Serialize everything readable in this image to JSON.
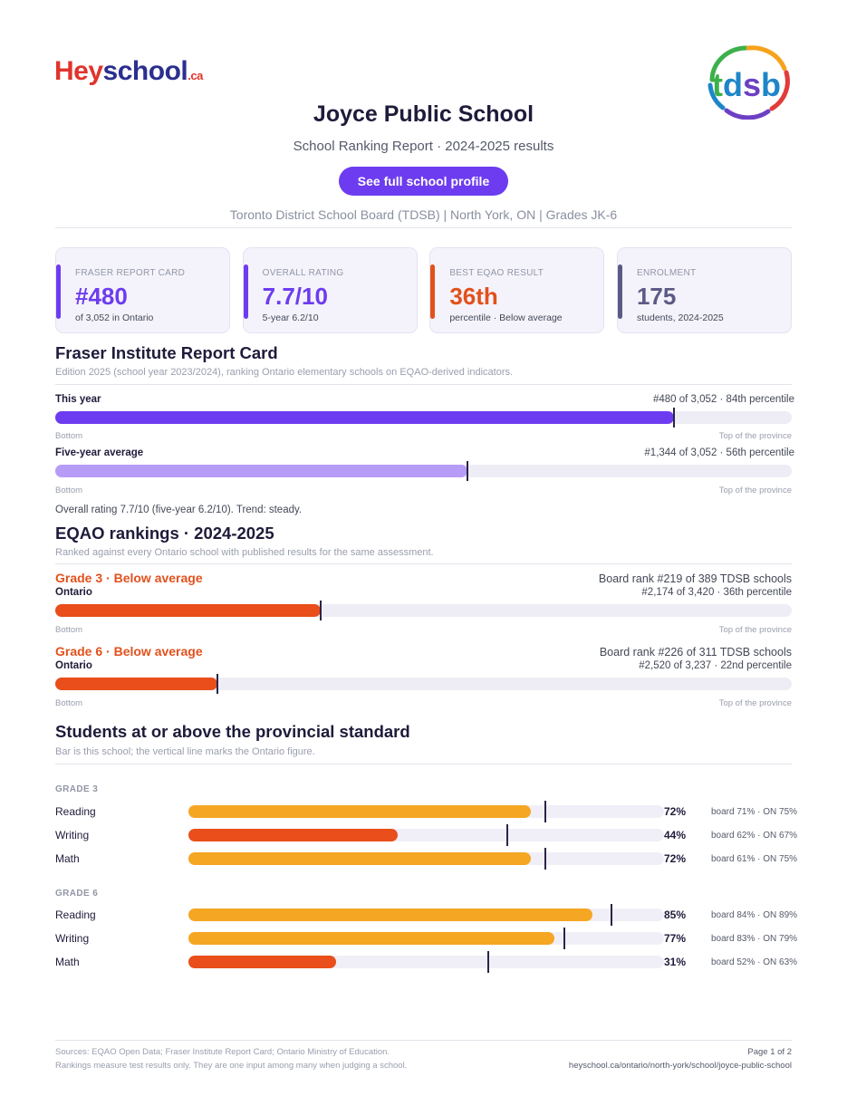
{
  "logos": {
    "heyschool": {
      "part1": "Hey",
      "part2": "school",
      "suffix": ".ca"
    },
    "board": "tdsb"
  },
  "header": {
    "title": "Joyce Public School",
    "subtitle": "School Ranking Report  ·  2024-2025 results",
    "cta_label": "See full school profile",
    "meta": "Toronto District School Board (TDSB)  |  North York, ON  |  Grades JK-6"
  },
  "cards": [
    {
      "label": "FRASER REPORT CARD",
      "value": "#480",
      "sub": "of 3,052 in Ontario",
      "color": "#6d3cf0"
    },
    {
      "label": "OVERALL RATING",
      "value": "7.7/10",
      "sub": "5-year 6.2/10",
      "color": "#6d3cf0"
    },
    {
      "label": "BEST EQAO RESULT",
      "value": "36th",
      "sub": "percentile  ·  Below average",
      "color": "#e2511c"
    },
    {
      "label": "ENROLMENT",
      "value": "175",
      "sub": "students, 2024-2025",
      "color": "#5c5a85"
    }
  ],
  "fraser": {
    "heading": "Fraser Institute Report Card",
    "desc": "Edition 2025 (school year 2023/2024), ranking Ontario elementary schools on EQAO-derived indicators.",
    "edge_low": "Bottom",
    "edge_high": "Top of the province",
    "this_year": {
      "label": "This year",
      "rank_text": "#480 of 3,052  ·  84th percentile",
      "percentile": 84
    },
    "five_year": {
      "label": "Five-year average",
      "rank_text": "#1,344 of 3,052  ·  56th percentile",
      "percentile": 56
    },
    "note": "Overall rating 7.7/10 (five-year 6.2/10). Trend: steady."
  },
  "eqao_rankings": {
    "heading": "EQAO rankings  ·  2024-2025",
    "desc": "Ranked against every Ontario school with published results for the same assessment.",
    "edge_low": "Bottom",
    "edge_high": "Top of the province",
    "grades": [
      {
        "title": "Grade 3  ·  Below average",
        "sub": "Ontario",
        "board_rank": "Board rank #219 of 389 TDSB schools",
        "ontario_rank": "#2,174 of 3,420  ·  36th percentile",
        "percentile": 36
      },
      {
        "title": "Grade 6  ·  Below average",
        "sub": "Ontario",
        "board_rank": "Board rank #226 of 311 TDSB schools",
        "ontario_rank": "#2,520 of 3,237  ·  22nd percentile",
        "percentile": 22
      }
    ]
  },
  "standard": {
    "heading": "Students at or above the provincial standard",
    "desc": "Bar is this school; the vertical line marks the Ontario figure.",
    "groups": [
      {
        "label": "GRADE 3",
        "subjects": [
          {
            "name": "Reading",
            "school": 72,
            "pct_text": "72%",
            "board": 71,
            "ontario": 75,
            "cmp": "board 71%  ·  ON 75%",
            "color": "#f5a623"
          },
          {
            "name": "Writing",
            "school": 44,
            "pct_text": "44%",
            "board": 62,
            "ontario": 67,
            "cmp": "board 62%  ·  ON 67%",
            "color": "#e94e1b"
          },
          {
            "name": "Math",
            "school": 72,
            "pct_text": "72%",
            "board": 61,
            "ontario": 75,
            "cmp": "board 61%  ·  ON 75%",
            "color": "#f5a623"
          }
        ]
      },
      {
        "label": "GRADE 6",
        "subjects": [
          {
            "name": "Reading",
            "school": 85,
            "pct_text": "85%",
            "board": 84,
            "ontario": 89,
            "cmp": "board 84%  ·  ON 89%",
            "color": "#f5a623"
          },
          {
            "name": "Writing",
            "school": 77,
            "pct_text": "77%",
            "board": 83,
            "ontario": 79,
            "cmp": "board 83%  ·  ON 79%",
            "color": "#f5a623"
          },
          {
            "name": "Math",
            "school": 31,
            "pct_text": "31%",
            "board": 52,
            "ontario": 63,
            "cmp": "board 52%  ·  ON 63%",
            "color": "#e94e1b"
          }
        ]
      }
    ]
  },
  "footer": {
    "sources": "Sources: EQAO Open Data; Fraser Institute Report Card; Ontario Ministry of Education.",
    "disclaimer": "Rankings measure test results only. They are one input among many when judging a school.",
    "page": "Page 1 of 2",
    "url": "heyschool.ca/ontario/north-york/school/joyce-public-school"
  },
  "colors": {
    "fraser_this_year": "#6d3cf0",
    "fraser_five_year": "#b79cf7",
    "eqao_below": "#e94e1b",
    "tdsb": [
      "#3cb04a",
      "#f6a21b",
      "#e13b3b",
      "#6c3fc4",
      "#1e86c8"
    ]
  }
}
